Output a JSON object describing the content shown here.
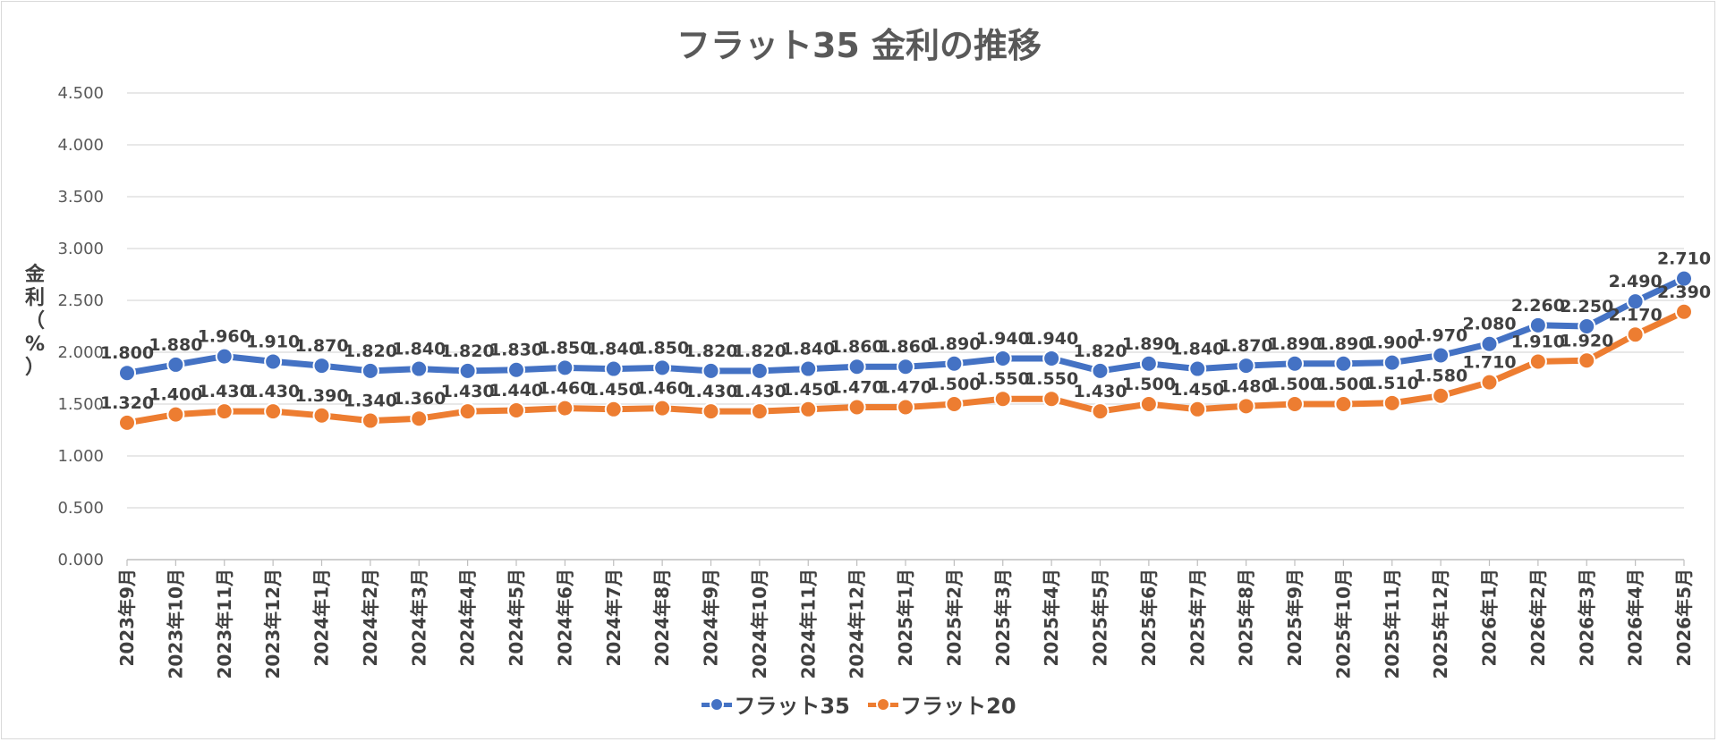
{
  "chart_data": {
    "type": "line",
    "title": "フラット35 金利の推移",
    "ylabel": "金利（%）",
    "xlabel": "",
    "ylim": [
      0,
      4.5
    ],
    "yticks": [
      "0.000",
      "0.500",
      "1.000",
      "1.500",
      "2.000",
      "2.500",
      "3.000",
      "3.500",
      "4.000",
      "4.500"
    ],
    "grid": true,
    "legend_position": "bottom",
    "categories": [
      "2023年9月",
      "2023年10月",
      "2023年11月",
      "2023年12月",
      "2024年1月",
      "2024年2月",
      "2024年3月",
      "2024年4月",
      "2024年5月",
      "2024年6月",
      "2024年7月",
      "2024年8月",
      "2024年9月",
      "2024年10月",
      "2024年11月",
      "2024年12月",
      "2025年1月",
      "2025年2月",
      "2025年3月",
      "2025年4月",
      "2025年5月",
      "2025年6月",
      "2025年7月",
      "2025年8月",
      "2025年9月",
      "2025年10月",
      "2025年11月",
      "2025年12月",
      "2026年1月",
      "2026年2月",
      "2026年3月",
      "2026年4月",
      "2026年5月"
    ],
    "series": [
      {
        "name": "フラット35",
        "color": "#4472c4",
        "values": [
          1.8,
          1.88,
          1.96,
          1.91,
          1.87,
          1.82,
          1.84,
          1.82,
          1.83,
          1.85,
          1.84,
          1.85,
          1.82,
          1.82,
          1.84,
          1.86,
          1.86,
          1.89,
          1.94,
          1.94,
          1.82,
          1.89,
          1.84,
          1.87,
          1.89,
          1.89,
          1.9,
          1.97,
          2.08,
          2.26,
          2.25,
          2.49,
          2.71
        ],
        "labels": [
          "1.800",
          "1.880",
          "1.960",
          "1.910",
          "1.870",
          "1.820",
          "1.840",
          "1.820",
          "1.830",
          "1.850",
          "1.840",
          "1.850",
          "1.820",
          "1.820",
          "1.840",
          "1.860",
          "1.860",
          "1.890",
          "1.940",
          "1.940",
          "1.820",
          "1.890",
          "1.840",
          "1.870",
          "1.890",
          "1.890",
          "1.900",
          "1.970",
          "2.080",
          "2.260",
          "2.250",
          "2.490",
          "2.710"
        ]
      },
      {
        "name": "フラット20",
        "color": "#ed7d31",
        "values": [
          1.32,
          1.4,
          1.43,
          1.43,
          1.39,
          1.34,
          1.36,
          1.43,
          1.44,
          1.46,
          1.45,
          1.46,
          1.43,
          1.43,
          1.45,
          1.47,
          1.47,
          1.5,
          1.55,
          1.55,
          1.43,
          1.5,
          1.45,
          1.48,
          1.5,
          1.5,
          1.51,
          1.58,
          1.71,
          1.91,
          1.92,
          2.17,
          2.39
        ],
        "labels": [
          "1.320",
          "1.400",
          "1.430",
          "1.430",
          "1.390",
          "1.340",
          "1.360",
          "1.430",
          "1.440",
          "1.460",
          "1.450",
          "1.460",
          "1.430",
          "1.430",
          "1.450",
          "1.470",
          "1.470",
          "1.500",
          "1.550",
          "1.550",
          "1.430",
          "1.500",
          "1.450",
          "1.480",
          "1.500",
          "1.500",
          "1.510",
          "1.580",
          "1.710",
          "1.910",
          "1.920",
          "2.170",
          "2.390"
        ]
      }
    ]
  }
}
